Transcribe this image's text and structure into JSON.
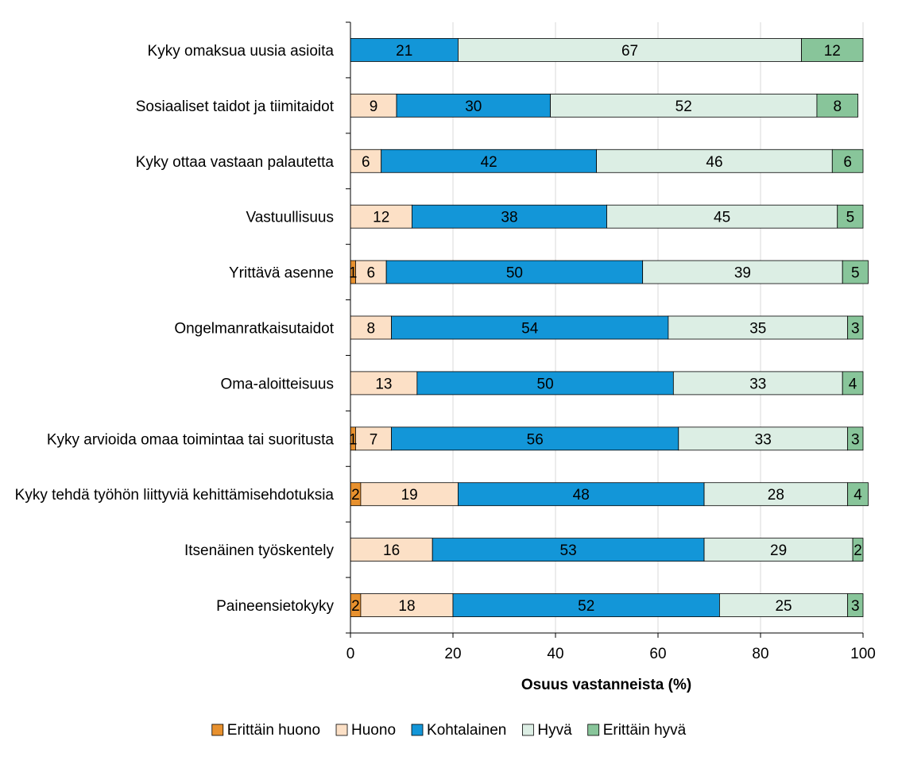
{
  "chart_data": {
    "type": "bar",
    "orientation": "horizontal",
    "stacked": true,
    "categories": [
      "Kyky omaksua uusia asioita",
      "Sosiaaliset taidot ja tiimitaidot",
      "Kyky ottaa vastaan palautetta",
      "Vastuullisuus",
      "Yrittävä asenne",
      "Ongelmanratkaisutaidot",
      "Oma-aloitteisuus",
      "Kyky arvioida omaa toimintaa tai suoritusta",
      "Kyky tehdä työhön liittyviä kehittämisehdotuksia",
      "Itsenäinen työskentely",
      "Paineensietokyky"
    ],
    "series": [
      {
        "name": "Erittäin huono",
        "color": "#E8912E",
        "values": [
          0,
          0,
          0,
          0,
          1,
          0,
          0,
          1,
          2,
          0,
          2
        ]
      },
      {
        "name": "Huono",
        "color": "#FCE0C6",
        "values": [
          0,
          9,
          6,
          12,
          6,
          8,
          13,
          7,
          19,
          16,
          18
        ]
      },
      {
        "name": "Kohtalainen",
        "color": "#1396D8",
        "values": [
          21,
          30,
          42,
          38,
          50,
          54,
          50,
          56,
          48,
          53,
          52
        ]
      },
      {
        "name": "Hyvä",
        "color": "#DCEEE4",
        "values": [
          67,
          52,
          46,
          45,
          39,
          35,
          33,
          33,
          28,
          29,
          25
        ]
      },
      {
        "name": "Erittäin hyvä",
        "color": "#88C59A",
        "values": [
          12,
          8,
          6,
          5,
          5,
          3,
          4,
          3,
          4,
          2,
          3
        ]
      }
    ],
    "xlabel": "Osuus vastanneista (%)",
    "ylabel": "",
    "title": "",
    "xlim": [
      0,
      100
    ],
    "xticks": [
      "0",
      "20",
      "40",
      "60",
      "80",
      "100"
    ],
    "grid": true,
    "legend_position": "bottom"
  }
}
